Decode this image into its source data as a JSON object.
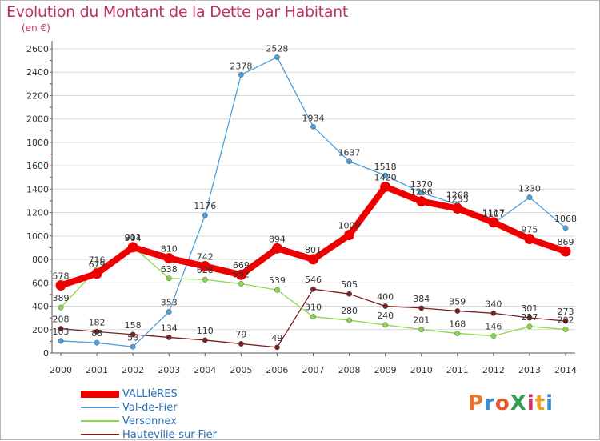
{
  "header": {
    "title": "Evolution du Montant de la Dette par Habitant",
    "unit": "(en €)"
  },
  "logo": {
    "text": "ProXiti",
    "colors": [
      "#e8742c",
      "#3a8fd0",
      "#e05a2a",
      "#2f9e55",
      "#d0306a",
      "#f0a020",
      "#3a8fd0"
    ]
  },
  "chart_data": {
    "type": "line",
    "title": "Evolution du Montant de la Dette par Habitant",
    "ylabel": "(en €)",
    "xlabel": "",
    "x": [
      "2000",
      "2001",
      "2002",
      "2003",
      "2004",
      "2005",
      "2006",
      "2007",
      "2008",
      "2009",
      "2010",
      "2011",
      "2012",
      "2013",
      "2014"
    ],
    "ylim": [
      0,
      2600
    ],
    "yticks": [
      0,
      200,
      400,
      600,
      800,
      1000,
      1200,
      1400,
      1600,
      1800,
      2000,
      2200,
      2400,
      2600
    ],
    "grid": "horizontal",
    "legend": "bottom-left",
    "series": [
      {
        "name": "VALLIèRES",
        "color": "#ee0000",
        "values": [
          578,
          679,
          904,
          810,
          742,
          669,
          894,
          801,
          1009,
          1420,
          1296,
          1235,
          1117,
          975,
          869
        ]
      },
      {
        "name": "Val-de-Fier",
        "color": "#4f9fd8",
        "values": [
          103,
          88,
          53,
          353,
          1176,
          2378,
          2528,
          1934,
          1637,
          1518,
          1370,
          1268,
          1107,
          1330,
          1068
        ]
      },
      {
        "name": "Versonnex",
        "color": "#8ed64a",
        "values": [
          389,
          716,
          911,
          638,
          628,
          592,
          539,
          310,
          280,
          240,
          201,
          168,
          146,
          227,
          202
        ]
      },
      {
        "name": "Hauteville-sur-Fier",
        "color": "#7a2020",
        "values": [
          208,
          182,
          158,
          134,
          110,
          79,
          49,
          546,
          505,
          400,
          384,
          359,
          340,
          301,
          273
        ]
      }
    ]
  }
}
